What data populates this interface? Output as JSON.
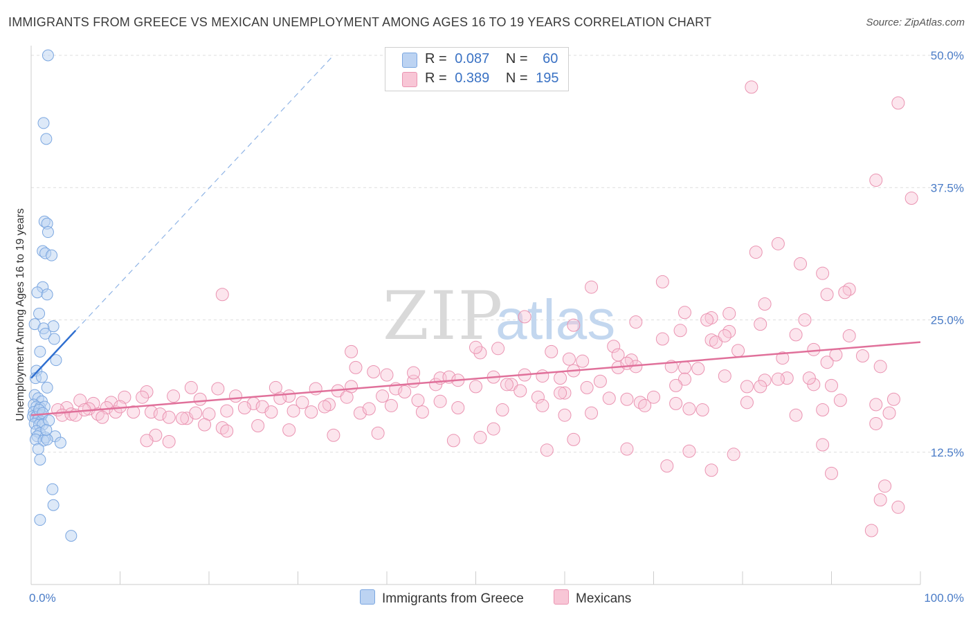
{
  "header": {
    "title": "IMMIGRANTS FROM GREECE VS MEXICAN UNEMPLOYMENT AMONG AGES 16 TO 19 YEARS CORRELATION CHART",
    "source": "Source: ZipAtlas.com"
  },
  "legend": {
    "greece": {
      "r_label": "R =",
      "r_value": "0.087",
      "n_label": "N =",
      "n_value": "60"
    },
    "mexicans": {
      "r_label": "R =",
      "r_value": "0.389",
      "n_label": "N =",
      "n_value": "195"
    }
  },
  "bottom_legend": {
    "greece": "Immigrants from Greece",
    "mexicans": "Mexicans"
  },
  "colors": {
    "greece_fill": "#bcd3f2",
    "greece_stroke": "#7aa6e0",
    "greece_line": "#2f6fd0",
    "mex_fill": "#f8c6d6",
    "mex_stroke": "#ea93b1",
    "mex_line": "#e0709a",
    "grid": "#dddddd",
    "axis": "#cccccc",
    "tick_text": "#4a7cc7"
  },
  "watermark": {
    "zip": "ZIP",
    "atlas": "atlas"
  },
  "chart_data": {
    "type": "scatter",
    "title": "IMMIGRANTS FROM GREECE VS MEXICAN UNEMPLOYMENT AMONG AGES 16 TO 19 YEARS CORRELATION CHART",
    "xlabel": "",
    "ylabel": "Unemployment Among Ages 16 to 19 years",
    "xlim": [
      0,
      100
    ],
    "ylim": [
      0,
      50
    ],
    "x_tick_labels": [
      "0.0%",
      "100.0%"
    ],
    "y_ticks": [
      12.5,
      25.0,
      37.5,
      50.0
    ],
    "y_tick_labels": [
      "12.5%",
      "25.0%",
      "37.5%",
      "50.0%"
    ],
    "grid": true,
    "legend_position": "top-center",
    "series": [
      {
        "name": "Immigrants from Greece",
        "R": 0.087,
        "N": 60,
        "trend_solid": [
          [
            0.0,
            19.5
          ],
          [
            5.0,
            24.0
          ]
        ],
        "trend_dashed": [
          [
            5.0,
            24.0
          ],
          [
            34.0,
            50.0
          ]
        ],
        "points": [
          [
            1.9,
            50.0
          ],
          [
            1.4,
            43.6
          ],
          [
            1.7,
            42.1
          ],
          [
            1.5,
            34.3
          ],
          [
            1.8,
            34.1
          ],
          [
            1.9,
            33.3
          ],
          [
            1.3,
            31.5
          ],
          [
            1.6,
            31.3
          ],
          [
            2.3,
            31.1
          ],
          [
            1.3,
            28.1
          ],
          [
            0.7,
            27.6
          ],
          [
            1.8,
            27.4
          ],
          [
            0.9,
            25.6
          ],
          [
            0.4,
            24.6
          ],
          [
            2.5,
            24.4
          ],
          [
            1.4,
            24.2
          ],
          [
            1.6,
            23.7
          ],
          [
            2.6,
            23.2
          ],
          [
            1.0,
            22.0
          ],
          [
            2.8,
            21.2
          ],
          [
            0.6,
            20.2
          ],
          [
            0.5,
            19.5
          ],
          [
            1.2,
            19.6
          ],
          [
            1.8,
            18.6
          ],
          [
            0.4,
            17.9
          ],
          [
            0.8,
            17.6
          ],
          [
            1.2,
            17.3
          ],
          [
            0.3,
            17.0
          ],
          [
            0.6,
            16.8
          ],
          [
            1.0,
            16.7
          ],
          [
            1.5,
            16.8
          ],
          [
            0.3,
            16.3
          ],
          [
            0.7,
            16.1
          ],
          [
            1.2,
            16.0
          ],
          [
            0.2,
            15.9
          ],
          [
            0.5,
            15.8
          ],
          [
            0.8,
            15.6
          ],
          [
            1.1,
            15.4
          ],
          [
            0.4,
            15.2
          ],
          [
            0.9,
            15.1
          ],
          [
            1.3,
            15.1
          ],
          [
            0.6,
            14.5
          ],
          [
            1.0,
            14.3
          ],
          [
            0.7,
            14.0
          ],
          [
            1.6,
            13.9
          ],
          [
            2.7,
            14.0
          ],
          [
            0.5,
            13.7
          ],
          [
            1.4,
            13.6
          ],
          [
            1.8,
            13.7
          ],
          [
            3.3,
            13.4
          ],
          [
            0.8,
            12.8
          ],
          [
            1.0,
            11.8
          ],
          [
            2.4,
            9.0
          ],
          [
            2.5,
            7.5
          ],
          [
            1.0,
            6.1
          ],
          [
            4.5,
            4.6
          ],
          [
            0.9,
            16.5
          ],
          [
            1.3,
            16.2
          ],
          [
            2.0,
            15.5
          ],
          [
            1.7,
            14.6
          ]
        ]
      },
      {
        "name": "Mexicans",
        "R": 0.389,
        "N": 195,
        "trend": [
          [
            0.0,
            16.0
          ],
          [
            100.0,
            22.9
          ]
        ],
        "points": [
          [
            81.0,
            47.0
          ],
          [
            97.5,
            45.5
          ],
          [
            95.0,
            38.2
          ],
          [
            99.0,
            36.5
          ],
          [
            84.0,
            32.2
          ],
          [
            81.5,
            31.4
          ],
          [
            86.5,
            30.3
          ],
          [
            89.0,
            29.4
          ],
          [
            63.0,
            28.1
          ],
          [
            82.5,
            26.5
          ],
          [
            71.0,
            28.6
          ],
          [
            92.0,
            27.9
          ],
          [
            21.5,
            27.4
          ],
          [
            89.5,
            27.4
          ],
          [
            91.5,
            27.6
          ],
          [
            78.5,
            25.6
          ],
          [
            76.5,
            25.2
          ],
          [
            73.5,
            25.7
          ],
          [
            55.5,
            25.3
          ],
          [
            87.0,
            25.0
          ],
          [
            76.0,
            25.0
          ],
          [
            68.0,
            24.8
          ],
          [
            82.0,
            24.6
          ],
          [
            73.0,
            24.0
          ],
          [
            61.0,
            24.5
          ],
          [
            76.5,
            23.1
          ],
          [
            86.0,
            23.6
          ],
          [
            71.0,
            23.2
          ],
          [
            92.0,
            23.5
          ],
          [
            52.5,
            22.3
          ],
          [
            77.0,
            22.9
          ],
          [
            78.5,
            23.9
          ],
          [
            78.0,
            23.5
          ],
          [
            36.0,
            22.0
          ],
          [
            62.0,
            21.1
          ],
          [
            65.5,
            22.5
          ],
          [
            90.5,
            21.7
          ],
          [
            79.5,
            22.1
          ],
          [
            88.0,
            22.2
          ],
          [
            58.5,
            22.0
          ],
          [
            50.5,
            21.9
          ],
          [
            60.5,
            21.3
          ],
          [
            50.0,
            22.4
          ],
          [
            66.0,
            21.7
          ],
          [
            67.5,
            21.2
          ],
          [
            68.0,
            20.6
          ],
          [
            61.0,
            20.2
          ],
          [
            84.5,
            21.4
          ],
          [
            72.0,
            20.6
          ],
          [
            73.5,
            20.5
          ],
          [
            66.0,
            20.5
          ],
          [
            67.0,
            20.9
          ],
          [
            89.5,
            21.0
          ],
          [
            93.5,
            21.6
          ],
          [
            95.5,
            20.6
          ],
          [
            75.0,
            20.4
          ],
          [
            73.5,
            19.4
          ],
          [
            78.0,
            19.7
          ],
          [
            85.0,
            19.5
          ],
          [
            82.5,
            19.3
          ],
          [
            84.0,
            19.4
          ],
          [
            80.5,
            18.7
          ],
          [
            88.0,
            18.9
          ],
          [
            59.5,
            19.5
          ],
          [
            72.5,
            18.8
          ],
          [
            64.0,
            19.2
          ],
          [
            82.0,
            18.7
          ],
          [
            54.0,
            18.9
          ],
          [
            87.5,
            19.5
          ],
          [
            90.0,
            18.8
          ],
          [
            40.0,
            19.8
          ],
          [
            43.0,
            19.2
          ],
          [
            45.5,
            18.9
          ],
          [
            46.0,
            19.5
          ],
          [
            47.0,
            19.6
          ],
          [
            52.0,
            19.6
          ],
          [
            55.5,
            19.8
          ],
          [
            57.5,
            19.7
          ],
          [
            48.0,
            19.3
          ],
          [
            43.0,
            20.0
          ],
          [
            36.5,
            20.5
          ],
          [
            38.5,
            20.1
          ],
          [
            27.5,
            18.6
          ],
          [
            32.0,
            18.5
          ],
          [
            34.5,
            18.3
          ],
          [
            36.0,
            18.7
          ],
          [
            41.0,
            18.5
          ],
          [
            42.0,
            18.2
          ],
          [
            50.0,
            18.7
          ],
          [
            53.5,
            18.9
          ],
          [
            55.0,
            18.3
          ],
          [
            62.5,
            18.6
          ],
          [
            60.0,
            18.1
          ],
          [
            57.0,
            17.7
          ],
          [
            59.5,
            18.1
          ],
          [
            65.0,
            17.6
          ],
          [
            67.0,
            17.5
          ],
          [
            70.0,
            17.7
          ],
          [
            68.5,
            17.2
          ],
          [
            72.5,
            17.1
          ],
          [
            69.0,
            16.9
          ],
          [
            80.5,
            17.2
          ],
          [
            91.0,
            17.4
          ],
          [
            95.0,
            17.0
          ],
          [
            97.0,
            17.5
          ],
          [
            96.5,
            16.2
          ],
          [
            89.0,
            16.5
          ],
          [
            86.0,
            16.0
          ],
          [
            74.0,
            16.6
          ],
          [
            75.5,
            16.5
          ],
          [
            63.0,
            16.2
          ],
          [
            57.5,
            16.9
          ],
          [
            46.0,
            17.3
          ],
          [
            43.5,
            17.4
          ],
          [
            40.5,
            16.9
          ],
          [
            39.5,
            17.8
          ],
          [
            35.5,
            17.7
          ],
          [
            33.5,
            17.0
          ],
          [
            30.5,
            17.2
          ],
          [
            29.0,
            17.8
          ],
          [
            28.0,
            17.6
          ],
          [
            25.0,
            17.1
          ],
          [
            23.0,
            17.8
          ],
          [
            21.0,
            18.5
          ],
          [
            19.0,
            17.5
          ],
          [
            18.0,
            18.6
          ],
          [
            16.0,
            17.8
          ],
          [
            13.0,
            18.2
          ],
          [
            12.5,
            17.7
          ],
          [
            10.5,
            17.7
          ],
          [
            9.0,
            17.2
          ],
          [
            8.5,
            16.7
          ],
          [
            7.0,
            17.1
          ],
          [
            6.5,
            16.6
          ],
          [
            5.5,
            17.4
          ],
          [
            4.0,
            16.7
          ],
          [
            3.0,
            16.5
          ],
          [
            3.5,
            16.0
          ],
          [
            4.5,
            16.1
          ],
          [
            5.0,
            16.0
          ],
          [
            6.0,
            16.5
          ],
          [
            7.5,
            16.1
          ],
          [
            8.0,
            15.8
          ],
          [
            9.5,
            16.3
          ],
          [
            10.0,
            16.8
          ],
          [
            11.5,
            16.3
          ],
          [
            13.5,
            16.3
          ],
          [
            14.5,
            16.1
          ],
          [
            15.5,
            15.8
          ],
          [
            17.5,
            15.7
          ],
          [
            18.5,
            16.2
          ],
          [
            20.0,
            16.1
          ],
          [
            22.0,
            16.4
          ],
          [
            24.0,
            16.7
          ],
          [
            26.0,
            16.8
          ],
          [
            27.0,
            16.3
          ],
          [
            29.5,
            16.4
          ],
          [
            31.5,
            16.3
          ],
          [
            33.0,
            16.8
          ],
          [
            37.0,
            16.2
          ],
          [
            38.0,
            16.6
          ],
          [
            44.0,
            16.3
          ],
          [
            48.0,
            16.7
          ],
          [
            53.0,
            16.5
          ],
          [
            60.0,
            16.0
          ],
          [
            17.0,
            15.7
          ],
          [
            19.5,
            15.1
          ],
          [
            21.5,
            14.8
          ],
          [
            22.0,
            14.5
          ],
          [
            25.5,
            15.0
          ],
          [
            29.0,
            14.6
          ],
          [
            34.0,
            14.1
          ],
          [
            39.0,
            14.3
          ],
          [
            14.0,
            14.1
          ],
          [
            13.0,
            13.6
          ],
          [
            15.5,
            13.5
          ],
          [
            47.5,
            13.6
          ],
          [
            52.0,
            14.7
          ],
          [
            50.5,
            13.9
          ],
          [
            61.0,
            13.7
          ],
          [
            58.0,
            12.7
          ],
          [
            67.0,
            12.8
          ],
          [
            74.0,
            12.6
          ],
          [
            79.0,
            12.3
          ],
          [
            89.0,
            13.2
          ],
          [
            95.0,
            15.2
          ],
          [
            71.5,
            11.2
          ],
          [
            76.5,
            10.8
          ],
          [
            90.0,
            10.5
          ],
          [
            96.0,
            9.3
          ],
          [
            95.5,
            8.0
          ],
          [
            97.5,
            7.3
          ],
          [
            94.5,
            5.1
          ]
        ]
      }
    ]
  }
}
